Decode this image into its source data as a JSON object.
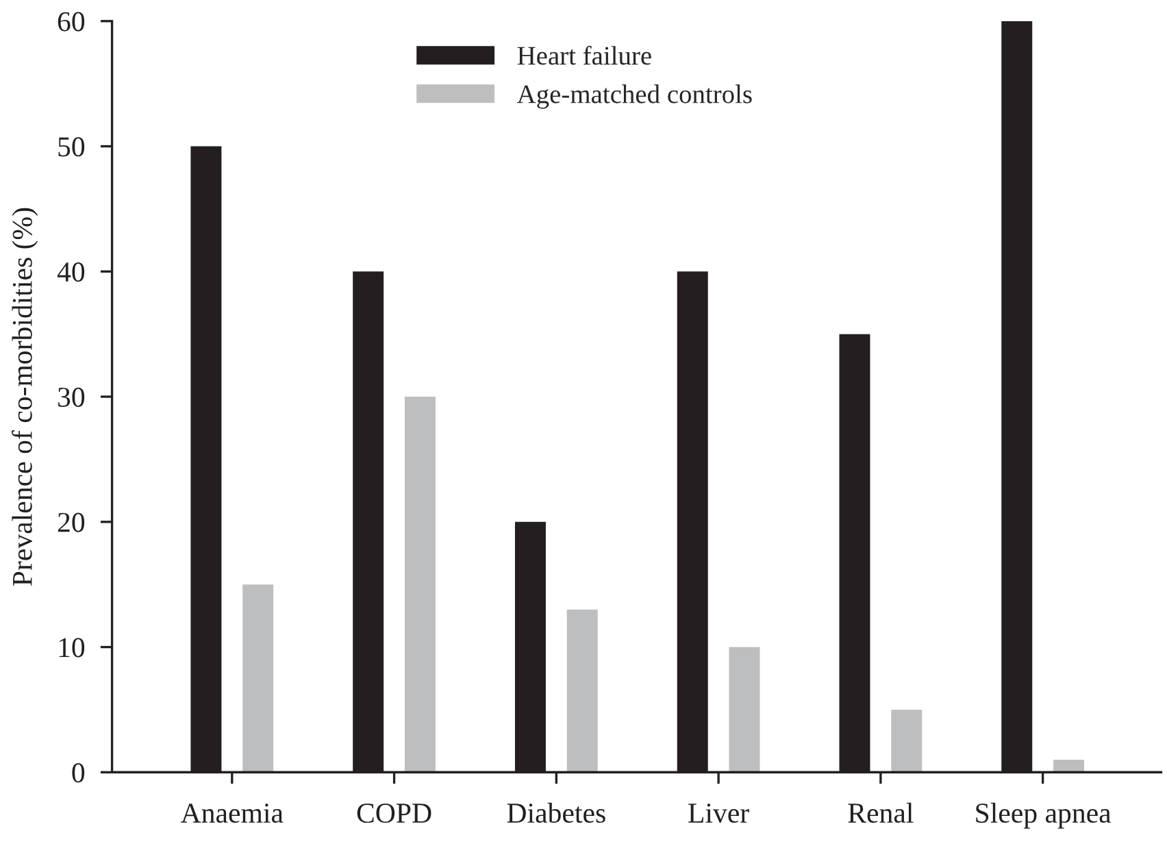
{
  "chart_data": {
    "type": "bar",
    "ylabel": "Prevalence of co-morbidities (%)",
    "categories": [
      "Anaemia",
      "COPD",
      "Diabetes",
      "Liver",
      "Renal",
      "Sleep apnea"
    ],
    "series": [
      {
        "name": "Heart failure",
        "color": "#231f20",
        "values": [
          50,
          40,
          20,
          40,
          35,
          60
        ]
      },
      {
        "name": "Age-matched controls",
        "color": "#bcbec0",
        "values": [
          15,
          30,
          13,
          10,
          5,
          1
        ]
      }
    ],
    "ylim": [
      0,
      60
    ],
    "yticks": [
      0,
      10,
      20,
      30,
      40,
      50,
      60
    ],
    "grid": false,
    "legend": "top"
  }
}
